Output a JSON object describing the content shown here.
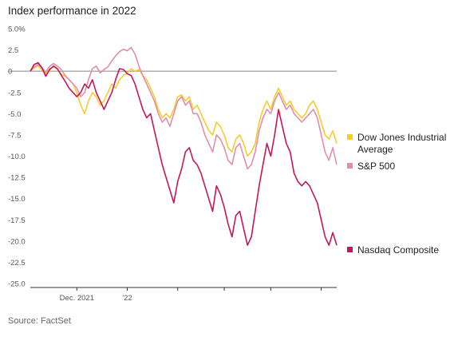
{
  "title": "Index performance in 2022",
  "source": "Source: FactSet",
  "chart_data": {
    "type": "line",
    "title": "Index performance in 2022",
    "ylabel_unit": "%",
    "ylim": [
      -25.0,
      5.0
    ],
    "yticks": [
      "5.0%",
      "2.5",
      "0",
      "-2.5",
      "-5.0",
      "-7.5",
      "-10.0",
      "-12.5",
      "-15.0",
      "-17.5",
      "-20.0",
      "-22.5",
      "-25.0"
    ],
    "ytick_values": [
      5.0,
      2.5,
      0,
      -2.5,
      -5.0,
      -7.5,
      -10.0,
      -12.5,
      -15.0,
      -17.5,
      -20.0,
      -22.5,
      -25.0
    ],
    "xticks": [
      {
        "index": 12,
        "label": "Dec. 2021"
      },
      {
        "index": 25,
        "label": "'22"
      },
      {
        "index": 38,
        "label": ""
      },
      {
        "index": 50,
        "label": ""
      },
      {
        "index": 62,
        "label": ""
      },
      {
        "index": 75,
        "label": ""
      }
    ],
    "x_count": 80,
    "grid": false,
    "legend_position": "right",
    "series": [
      {
        "name": "Dow Jones Industrial Average",
        "color": "#f5cd2f",
        "values": [
          0,
          0.4,
          0.6,
          0.2,
          -0.3,
          0.3,
          0.5,
          0.2,
          -0.4,
          -0.6,
          -1.0,
          -1.5,
          -2.5,
          -4.0,
          -5.0,
          -3.5,
          -2.5,
          -3.0,
          -4.0,
          -3.5,
          -2.5,
          -1.5,
          -2.0,
          -1.0,
          -0.5,
          -0.2,
          0.3,
          0.0,
          0.2,
          -0.5,
          -1.0,
          -2.0,
          -3.0,
          -4.5,
          -5.5,
          -5.0,
          -5.5,
          -4.5,
          -3.0,
          -2.8,
          -3.5,
          -3.0,
          -4.5,
          -4.0,
          -5.0,
          -6.0,
          -7.0,
          -7.5,
          -6.0,
          -6.5,
          -7.5,
          -9.0,
          -9.5,
          -8.0,
          -7.5,
          -8.5,
          -10.0,
          -9.5,
          -8.5,
          -6.0,
          -4.5,
          -3.5,
          -4.5,
          -3.0,
          -2.0,
          -3.0,
          -4.0,
          -3.5,
          -4.5,
          -5.0,
          -5.5,
          -5.0,
          -4.0,
          -3.5,
          -4.5,
          -6.0,
          -7.5,
          -8.0,
          -7.0,
          -8.5
        ]
      },
      {
        "name": "S&P 500",
        "color": "#e08fb0",
        "values": [
          0,
          0.5,
          0.8,
          0.4,
          -0.1,
          0.6,
          0.9,
          0.6,
          0.2,
          -0.5,
          -1.0,
          -1.5,
          -2.0,
          -3.0,
          -2.5,
          -1.0,
          0.3,
          0.6,
          -0.2,
          0.2,
          0.5,
          1.2,
          1.8,
          2.3,
          2.6,
          2.4,
          2.8,
          2.0,
          0.6,
          -0.5,
          -1.5,
          -2.5,
          -3.5,
          -5.0,
          -6.0,
          -5.5,
          -6.5,
          -5.0,
          -3.5,
          -3.0,
          -4.0,
          -3.5,
          -5.0,
          -5.0,
          -6.0,
          -7.5,
          -8.5,
          -9.5,
          -7.5,
          -8.0,
          -9.0,
          -10.5,
          -11.0,
          -9.0,
          -8.5,
          -10.0,
          -11.5,
          -11.0,
          -9.5,
          -7.0,
          -5.5,
          -4.5,
          -5.0,
          -3.5,
          -2.5,
          -3.5,
          -4.5,
          -4.0,
          -5.0,
          -5.5,
          -6.0,
          -5.5,
          -5.0,
          -4.5,
          -5.5,
          -7.5,
          -9.5,
          -10.5,
          -9.0,
          -11.0
        ]
      },
      {
        "name": "Nasdaq Composite",
        "color": "#c2185b",
        "values": [
          0,
          0.8,
          1.0,
          0.4,
          -0.6,
          0.2,
          0.6,
          0.3,
          -0.5,
          -1.2,
          -2.0,
          -2.5,
          -3.0,
          -2.5,
          -1.5,
          -2.0,
          -1.0,
          -2.5,
          -3.5,
          -4.5,
          -3.5,
          -2.5,
          -1.0,
          0.3,
          0.2,
          -0.3,
          -0.5,
          -1.5,
          -3.0,
          -4.5,
          -5.5,
          -5.0,
          -7.0,
          -9.0,
          -11.0,
          -12.5,
          -14.0,
          -15.5,
          -13.0,
          -11.5,
          -9.5,
          -9.0,
          -10.5,
          -11.0,
          -12.0,
          -13.5,
          -15.0,
          -16.5,
          -13.5,
          -14.5,
          -16.0,
          -18.0,
          -19.5,
          -17.0,
          -16.5,
          -18.5,
          -20.5,
          -19.5,
          -16.5,
          -13.5,
          -11.0,
          -8.5,
          -10.0,
          -7.5,
          -4.5,
          -6.5,
          -8.5,
          -9.5,
          -12.0,
          -13.0,
          -13.5,
          -13.0,
          -13.5,
          -14.5,
          -15.5,
          -17.5,
          -19.5,
          -20.5,
          -19.0,
          -20.5
        ]
      }
    ]
  }
}
